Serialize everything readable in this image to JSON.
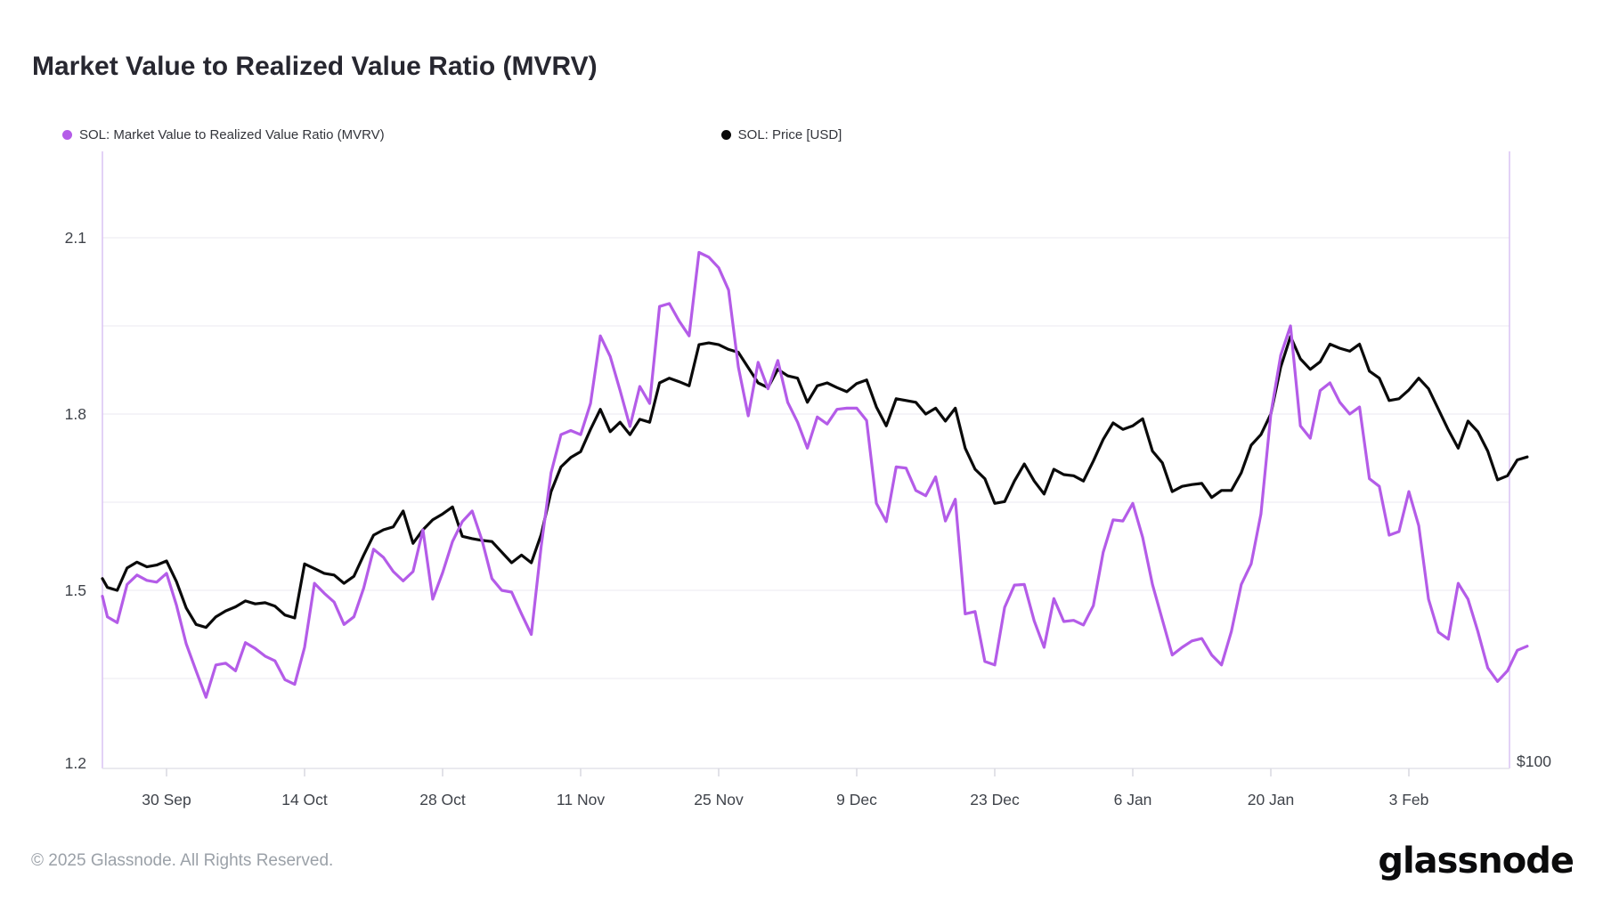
{
  "page": {
    "title": "Market Value to Realized Value Ratio (MVRV)"
  },
  "legend": {
    "items": [
      {
        "label": "SOL: Market Value to Realized Value Ratio (MVRV)",
        "color": "#b45ce8"
      },
      {
        "label": "SOL: Price [USD]",
        "color": "#0a0a0a"
      }
    ]
  },
  "chart_data": {
    "type": "line",
    "title": "Market Value to Realized Value Ratio (MVRV)",
    "start_date": "2024-09-23",
    "frequency": "daily",
    "n_points": 144,
    "x_tick_labels": [
      "30 Sep",
      "14 Oct",
      "28 Oct",
      "11 Nov",
      "25 Nov",
      "9 Dec",
      "23 Dec",
      "6 Jan",
      "20 Jan",
      "3 Feb"
    ],
    "x_tick_indices": [
      7,
      21,
      35,
      49,
      63,
      77,
      91,
      105,
      119,
      133
    ],
    "y_axis": {
      "tick_labels": [
        "2.1",
        "1.8",
        "1.5",
        "1.2"
      ],
      "tick_values": [
        2.1,
        1.8,
        1.5,
        1.2
      ],
      "ylim": [
        1.2,
        2.25
      ],
      "gridlines_at": [
        1.35,
        1.5,
        1.65,
        1.8,
        1.95,
        2.1
      ]
    },
    "right_axis": {
      "visible_label": "$100",
      "note": "price series plotted on hidden right axis; values below are left-axis-equivalent positions"
    },
    "series": [
      {
        "name": "SOL: Market Value to Realized Value Ratio (MVRV)",
        "color": "#b45ce8",
        "values": [
          1.49,
          1.455,
          1.445,
          1.51,
          1.526,
          1.517,
          1.514,
          1.529,
          1.475,
          1.409,
          1.363,
          1.318,
          1.373,
          1.376,
          1.363,
          1.411,
          1.401,
          1.388,
          1.38,
          1.348,
          1.34,
          1.403,
          1.512,
          1.495,
          1.48,
          1.442,
          1.455,
          1.504,
          1.57,
          1.556,
          1.532,
          1.516,
          1.532,
          1.603,
          1.485,
          1.53,
          1.583,
          1.617,
          1.635,
          1.585,
          1.52,
          1.5,
          1.497,
          1.46,
          1.425,
          1.575,
          1.7,
          1.765,
          1.772,
          1.765,
          1.818,
          1.933,
          1.898,
          1.84,
          1.779,
          1.847,
          1.818,
          1.983,
          1.988,
          1.958,
          1.933,
          2.075,
          2.067,
          2.049,
          2.011,
          1.88,
          1.797,
          1.888,
          1.843,
          1.891,
          1.82,
          1.786,
          1.742,
          1.795,
          1.783,
          1.808,
          1.81,
          1.81,
          1.789,
          1.648,
          1.617,
          1.71,
          1.708,
          1.67,
          1.661,
          1.693,
          1.618,
          1.655,
          1.46,
          1.464,
          1.379,
          1.373,
          1.471,
          1.509,
          1.51,
          1.448,
          1.403,
          1.486,
          1.447,
          1.449,
          1.441,
          1.474,
          1.565,
          1.62,
          1.618,
          1.648,
          1.59,
          1.51,
          1.45,
          1.39,
          1.403,
          1.414,
          1.418,
          1.39,
          1.373,
          1.43,
          1.51,
          1.545,
          1.63,
          1.8,
          1.9,
          1.95,
          1.78,
          1.759,
          1.84,
          1.853,
          1.82,
          1.8,
          1.812,
          1.69,
          1.677,
          1.594,
          1.6,
          1.668,
          1.61,
          1.485,
          1.429,
          1.417,
          1.512,
          1.485,
          1.43,
          1.368,
          1.345,
          1.363,
          1.398,
          1.405
        ]
      },
      {
        "name": "SOL: Price [USD]",
        "color": "#0a0a0a",
        "values": [
          1.52,
          1.505,
          1.5,
          1.538,
          1.548,
          1.54,
          1.543,
          1.55,
          1.515,
          1.47,
          1.442,
          1.437,
          1.455,
          1.465,
          1.472,
          1.482,
          1.477,
          1.479,
          1.473,
          1.458,
          1.453,
          1.545,
          1.537,
          1.529,
          1.526,
          1.512,
          1.524,
          1.56,
          1.594,
          1.603,
          1.608,
          1.635,
          1.58,
          1.603,
          1.62,
          1.63,
          1.642,
          1.592,
          1.588,
          1.585,
          1.583,
          1.565,
          1.547,
          1.56,
          1.547,
          1.595,
          1.668,
          1.71,
          1.726,
          1.736,
          1.774,
          1.808,
          1.77,
          1.786,
          1.765,
          1.791,
          1.786,
          1.853,
          1.861,
          1.855,
          1.848,
          1.918,
          1.921,
          1.918,
          1.91,
          1.905,
          1.879,
          1.853,
          1.845,
          1.876,
          1.865,
          1.861,
          1.82,
          1.848,
          1.853,
          1.845,
          1.838,
          1.852,
          1.858,
          1.812,
          1.78,
          1.826,
          1.823,
          1.82,
          1.8,
          1.81,
          1.788,
          1.81,
          1.742,
          1.706,
          1.69,
          1.648,
          1.651,
          1.686,
          1.715,
          1.686,
          1.664,
          1.706,
          1.697,
          1.695,
          1.686,
          1.72,
          1.757,
          1.785,
          1.774,
          1.78,
          1.792,
          1.737,
          1.717,
          1.668,
          1.677,
          1.68,
          1.682,
          1.658,
          1.67,
          1.67,
          1.7,
          1.747,
          1.765,
          1.8,
          1.88,
          1.932,
          1.894,
          1.876,
          1.889,
          1.919,
          1.912,
          1.907,
          1.919,
          1.873,
          1.861,
          1.823,
          1.826,
          1.841,
          1.861,
          1.843,
          1.808,
          1.773,
          1.742,
          1.788,
          1.77,
          1.737,
          1.688,
          1.695,
          1.722,
          1.727
        ]
      }
    ],
    "legend_position": "top-left",
    "grid": "horizontal-only"
  },
  "footer": {
    "copyright": "© 2025 Glassnode. All Rights Reserved.",
    "logo_text": "glassnode"
  }
}
